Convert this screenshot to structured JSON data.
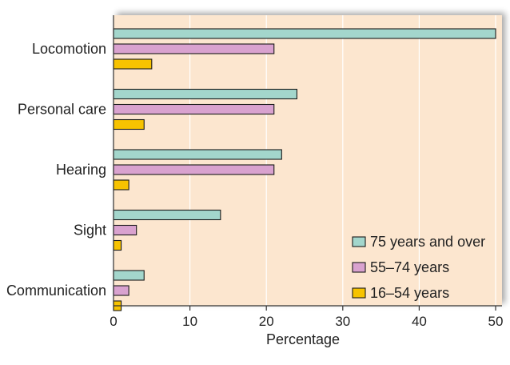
{
  "chart_data": {
    "type": "bar",
    "orientation": "horizontal",
    "title": "",
    "xlabel": "Percentage",
    "ylabel": "",
    "xlim": [
      0,
      50
    ],
    "xticks": [
      0,
      10,
      20,
      30,
      40,
      50
    ],
    "grid": "vertical",
    "legend_position": "bottom-right",
    "categories": [
      "Locomotion",
      "Personal care",
      "Hearing",
      "Sight",
      "Communication"
    ],
    "series": [
      {
        "name": "75 years and over",
        "color": "#a3d6cc",
        "values": [
          50,
          24,
          22,
          14,
          4
        ]
      },
      {
        "name": "55–74 years",
        "color": "#d9a2cf",
        "values": [
          21,
          21,
          21,
          3,
          2
        ]
      },
      {
        "name": "16–54 years",
        "color": "#f7c300",
        "values": [
          5,
          4,
          2,
          1,
          1
        ]
      }
    ],
    "background_color": "#fce6cf"
  }
}
